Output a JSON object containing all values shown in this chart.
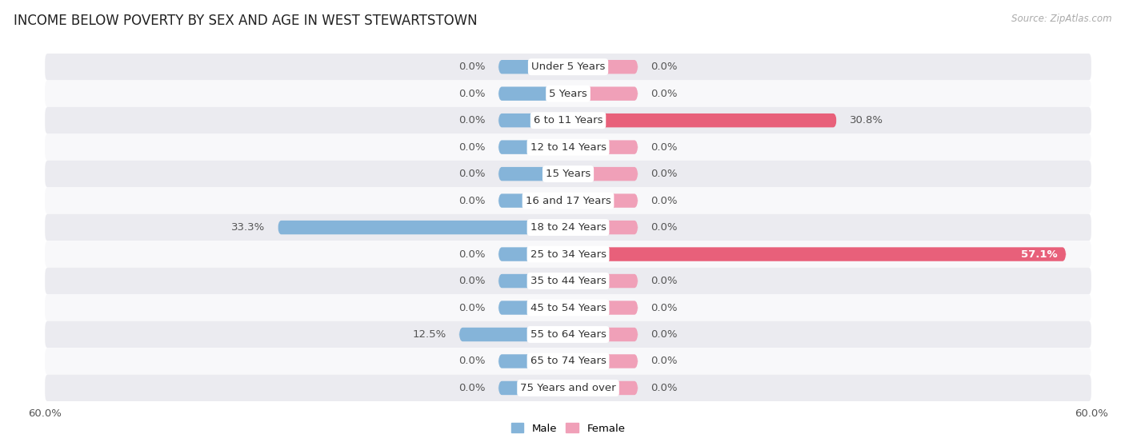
{
  "title": "INCOME BELOW POVERTY BY SEX AND AGE IN WEST STEWARTSTOWN",
  "source": "Source: ZipAtlas.com",
  "categories": [
    "Under 5 Years",
    "5 Years",
    "6 to 11 Years",
    "12 to 14 Years",
    "15 Years",
    "16 and 17 Years",
    "18 to 24 Years",
    "25 to 34 Years",
    "35 to 44 Years",
    "45 to 54 Years",
    "55 to 64 Years",
    "65 to 74 Years",
    "75 Years and over"
  ],
  "male_values": [
    0.0,
    0.0,
    0.0,
    0.0,
    0.0,
    0.0,
    33.3,
    0.0,
    0.0,
    0.0,
    12.5,
    0.0,
    0.0
  ],
  "female_values": [
    0.0,
    0.0,
    30.8,
    0.0,
    0.0,
    0.0,
    0.0,
    57.1,
    0.0,
    0.0,
    0.0,
    0.0,
    0.0
  ],
  "male_color": "#85b4d9",
  "female_color": "#f0a0b8",
  "female_color_bright": "#e8607a",
  "row_colors": [
    "#ebebf0",
    "#f8f8fa"
  ],
  "axis_limit": 60.0,
  "bar_height": 0.52,
  "stub_size": 8.0,
  "title_fontsize": 12,
  "label_fontsize": 9.5,
  "tick_fontsize": 9.5,
  "cat_fontsize": 9.5
}
